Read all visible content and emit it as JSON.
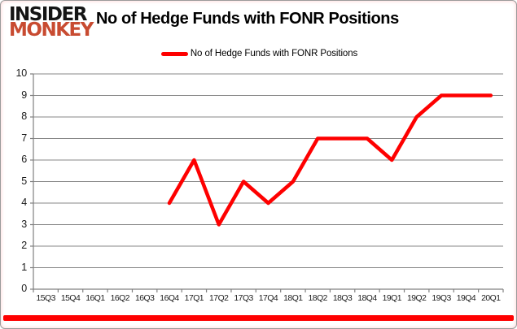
{
  "logo": {
    "line1": "INSIDER",
    "line2": "MONKEY"
  },
  "header": {
    "title": "No of Hedge Funds with FONR Positions"
  },
  "legend": {
    "label": "No of Hedge Funds with FONR Positions"
  },
  "colors": {
    "series_red": "#fe0000",
    "logo_red": "#c84b31",
    "gridline": "#878787",
    "axis_line": "#808080",
    "axis_text": "#1a1a1a"
  },
  "chart_data": {
    "type": "line",
    "title": "No of Hedge Funds with FONR Positions",
    "categories": [
      "15Q3",
      "15Q4",
      "16Q1",
      "16Q2",
      "16Q3",
      "16Q4",
      "17Q1",
      "17Q2",
      "17Q3",
      "17Q4",
      "18Q1",
      "18Q2",
      "18Q3",
      "18Q4",
      "19Q1",
      "19Q2",
      "19Q3",
      "19Q4",
      "20Q1"
    ],
    "series": [
      {
        "name": "No of Hedge Funds with FONR Positions",
        "color": "#fe0000",
        "values": [
          null,
          null,
          null,
          null,
          null,
          4,
          6,
          3,
          5,
          4,
          5,
          7,
          7,
          7,
          6,
          8,
          9,
          9,
          9
        ]
      }
    ],
    "xlabel": "",
    "ylabel": "",
    "ylim": [
      0,
      10
    ],
    "ytick_step": 1,
    "grid": true,
    "legend_position": "top-center"
  }
}
